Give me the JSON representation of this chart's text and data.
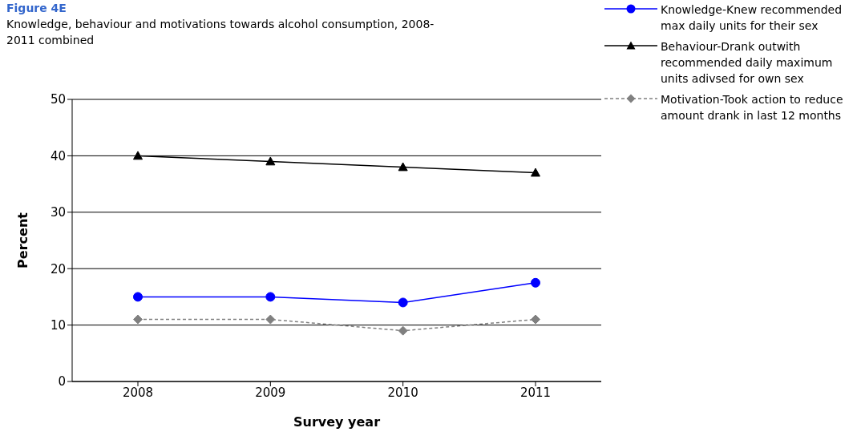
{
  "chart_data": {
    "type": "line",
    "title": "Figure 4E",
    "subtitle": "Knowledge, behaviour and motivations towards alcohol consumption, 2008-2011 combined",
    "xlabel": "Survey year",
    "ylabel": "Percent",
    "categories": [
      "2008",
      "2009",
      "2010",
      "2011"
    ],
    "ylim": [
      0,
      50
    ],
    "yticks": [
      0,
      10,
      20,
      30,
      40,
      50
    ],
    "grid": "y",
    "legend": "top right",
    "series": [
      {
        "name": "Knowledge-Knew recommended max daily units for their sex",
        "color": "#0000ff",
        "marker": "circle",
        "line_style": "solid",
        "values": [
          15,
          15,
          14,
          17.5
        ]
      },
      {
        "name": "Behaviour-Drank outwith recommended daily maximum units adivsed for own sex",
        "color": "#000000",
        "marker": "triangle",
        "line_style": "solid",
        "values": [
          40,
          39,
          38,
          37
        ]
      },
      {
        "name": "Motivation-Took action to reduce amount drank in last 12 months",
        "color": "#808080",
        "marker": "diamond",
        "line_style": "dashed",
        "values": [
          11,
          11,
          9,
          11
        ]
      }
    ]
  }
}
